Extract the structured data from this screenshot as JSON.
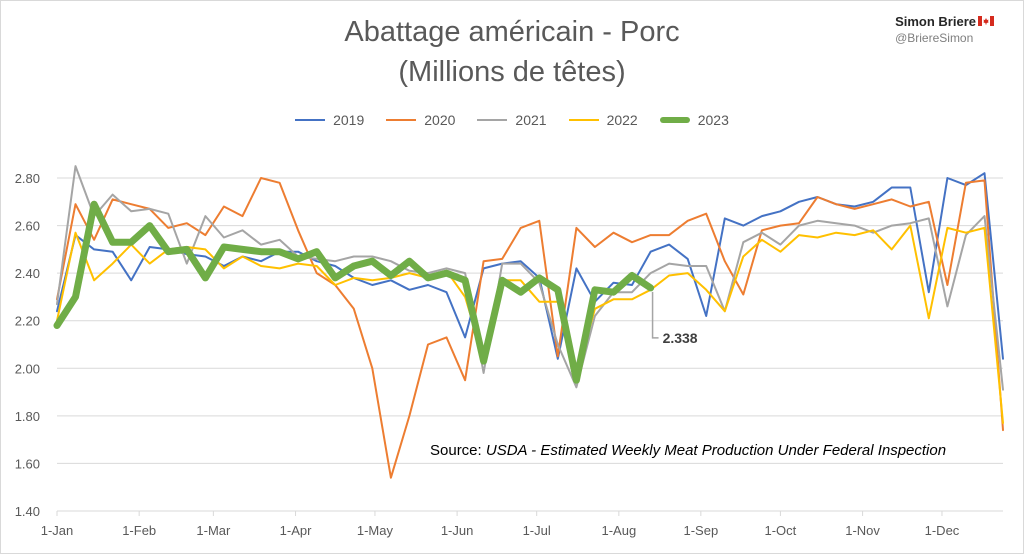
{
  "header": {
    "title_line1": "Abattage américain - Porc",
    "title_line2": "(Millions de têtes)",
    "author": "Simon Briere",
    "handle": "@BriereSimon",
    "flag_icon": "canada-flag-icon"
  },
  "source": {
    "prefix": "Source: ",
    "text": "USDA - Estimated Weekly Meat Production Under Federal Inspection"
  },
  "chart_data": {
    "type": "line",
    "title": "Abattage américain - Porc",
    "subtitle": "(Millions de têtes)",
    "ylim": [
      1.4,
      2.9
    ],
    "yticks": [
      "1.40",
      "1.60",
      "1.80",
      "2.00",
      "2.20",
      "2.40",
      "2.60",
      "2.80"
    ],
    "xticks": [
      "1-Jan",
      "1-Feb",
      "1-Mar",
      "1-Apr",
      "1-May",
      "1-Jun",
      "1-Jul",
      "1-Aug",
      "1-Sep",
      "1-Oct",
      "1-Nov",
      "1-Dec"
    ],
    "xtick_weeks": [
      0,
      4.43,
      8.43,
      12.86,
      17.14,
      21.57,
      25.86,
      30.29,
      34.71,
      39.0,
      43.43,
      47.71
    ],
    "grid": true,
    "legend": "top",
    "annotation": {
      "label": "2.338",
      "series": "2023",
      "week": 32
    },
    "series": [
      {
        "name": "2019",
        "color": "#4472c4",
        "width": 2,
        "values": [
          2.24,
          2.56,
          2.5,
          2.49,
          2.37,
          2.51,
          2.5,
          2.48,
          2.47,
          2.43,
          2.47,
          2.45,
          2.49,
          2.49,
          2.45,
          2.43,
          2.38,
          2.35,
          2.37,
          2.33,
          2.35,
          2.32,
          2.13,
          2.42,
          2.44,
          2.45,
          2.38,
          2.04,
          2.42,
          2.28,
          2.36,
          2.35,
          2.49,
          2.52,
          2.46,
          2.22,
          2.63,
          2.6,
          2.64,
          2.66,
          2.7,
          2.72,
          2.69,
          2.68,
          2.7,
          2.76,
          2.76,
          2.32,
          2.8,
          2.77,
          2.82,
          2.04
        ]
      },
      {
        "name": "2020",
        "color": "#ed7d31",
        "width": 2,
        "values": [
          2.29,
          2.69,
          2.54,
          2.71,
          2.69,
          2.67,
          2.59,
          2.61,
          2.56,
          2.68,
          2.64,
          2.8,
          2.78,
          2.58,
          2.4,
          2.35,
          2.25,
          2.0,
          1.54,
          1.8,
          2.1,
          2.13,
          1.95,
          2.45,
          2.46,
          2.59,
          2.62,
          2.05,
          2.59,
          2.51,
          2.57,
          2.53,
          2.56,
          2.56,
          2.62,
          2.65,
          2.45,
          2.31,
          2.58,
          2.6,
          2.61,
          2.72,
          2.69,
          2.67,
          2.69,
          2.71,
          2.68,
          2.7,
          2.35,
          2.78,
          2.79,
          1.74
        ]
      },
      {
        "name": "2021",
        "color": "#a5a5a5",
        "width": 2,
        "values": [
          2.27,
          2.85,
          2.64,
          2.73,
          2.66,
          2.67,
          2.65,
          2.44,
          2.64,
          2.55,
          2.58,
          2.52,
          2.54,
          2.47,
          2.46,
          2.45,
          2.47,
          2.47,
          2.45,
          2.41,
          2.4,
          2.42,
          2.4,
          1.98,
          2.44,
          2.44,
          2.36,
          2.1,
          1.92,
          2.22,
          2.32,
          2.32,
          2.4,
          2.44,
          2.43,
          2.43,
          2.24,
          2.53,
          2.57,
          2.52,
          2.6,
          2.62,
          2.61,
          2.6,
          2.57,
          2.6,
          2.61,
          2.63,
          2.26,
          2.56,
          2.64,
          1.91
        ]
      },
      {
        "name": "2022",
        "color": "#ffc000",
        "width": 2,
        "values": [
          2.2,
          2.57,
          2.37,
          2.44,
          2.52,
          2.44,
          2.5,
          2.51,
          2.5,
          2.42,
          2.47,
          2.43,
          2.42,
          2.44,
          2.43,
          2.35,
          2.38,
          2.37,
          2.38,
          2.4,
          2.38,
          2.41,
          2.3,
          2.04,
          2.37,
          2.37,
          2.28,
          2.28,
          1.97,
          2.25,
          2.29,
          2.29,
          2.33,
          2.39,
          2.4,
          2.33,
          2.24,
          2.47,
          2.54,
          2.49,
          2.56,
          2.55,
          2.57,
          2.56,
          2.58,
          2.5,
          2.6,
          2.21,
          2.59,
          2.57,
          2.59,
          1.77
        ]
      },
      {
        "name": "2023",
        "color": "#70ad47",
        "width": 7,
        "values": [
          2.18,
          2.3,
          2.69,
          2.53,
          2.53,
          2.6,
          2.49,
          2.5,
          2.38,
          2.51,
          2.5,
          2.49,
          2.49,
          2.46,
          2.49,
          2.38,
          2.43,
          2.45,
          2.39,
          2.45,
          2.38,
          2.4,
          2.37,
          2.03,
          2.37,
          2.32,
          2.38,
          2.33,
          1.95,
          2.33,
          2.32,
          2.39,
          2.338
        ]
      }
    ]
  }
}
